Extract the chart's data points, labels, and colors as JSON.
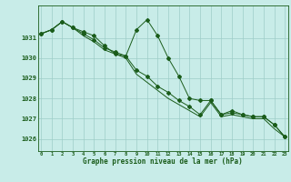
{
  "title": "Graphe pression niveau de la mer (hPa)",
  "background_color": "#c8ece8",
  "grid_color": "#9ecdc8",
  "line_color": "#1a5c1a",
  "ylim": [
    1025.4,
    1032.6
  ],
  "yticks": [
    1026,
    1027,
    1028,
    1029,
    1030,
    1031
  ],
  "xlim": [
    -0.3,
    23.3
  ],
  "series": [
    [
      1031.2,
      1031.4,
      1031.8,
      1031.5,
      1031.3,
      1031.1,
      1030.6,
      1030.2,
      1030.1,
      1031.4,
      1031.9,
      1031.1,
      1030.0,
      1029.1,
      1028.0,
      1027.9,
      1027.9,
      1027.2,
      1027.4,
      1027.2,
      1027.1,
      1027.1,
      1026.7,
      1026.1
    ],
    [
      1031.2,
      1031.4,
      1031.8,
      1031.5,
      1031.2,
      1030.9,
      1030.5,
      1030.3,
      1030.1,
      1029.4,
      1029.1,
      1028.6,
      1028.3,
      1027.9,
      1027.6,
      1027.2,
      1027.9,
      1027.2,
      1027.3,
      1027.2,
      1027.1,
      1027.1,
      1026.7,
      1026.1
    ],
    [
      1031.2,
      1031.4,
      1031.8,
      1031.5,
      1031.1,
      1030.8,
      1030.4,
      1030.2,
      1030.0,
      1029.2,
      1028.8,
      1028.4,
      1028.0,
      1027.7,
      1027.4,
      1027.1,
      1027.8,
      1027.1,
      1027.2,
      1027.1,
      1027.0,
      1027.0,
      1026.5,
      1026.1
    ]
  ],
  "marker_series_idx": [
    0,
    1
  ],
  "x_labels": [
    "0",
    "1",
    "2",
    "3",
    "4",
    "5",
    "6",
    "7",
    "8",
    "9",
    "10",
    "11",
    "12",
    "13",
    "14",
    "15",
    "16",
    "17",
    "18",
    "19",
    "20",
    "21",
    "22",
    "23"
  ]
}
